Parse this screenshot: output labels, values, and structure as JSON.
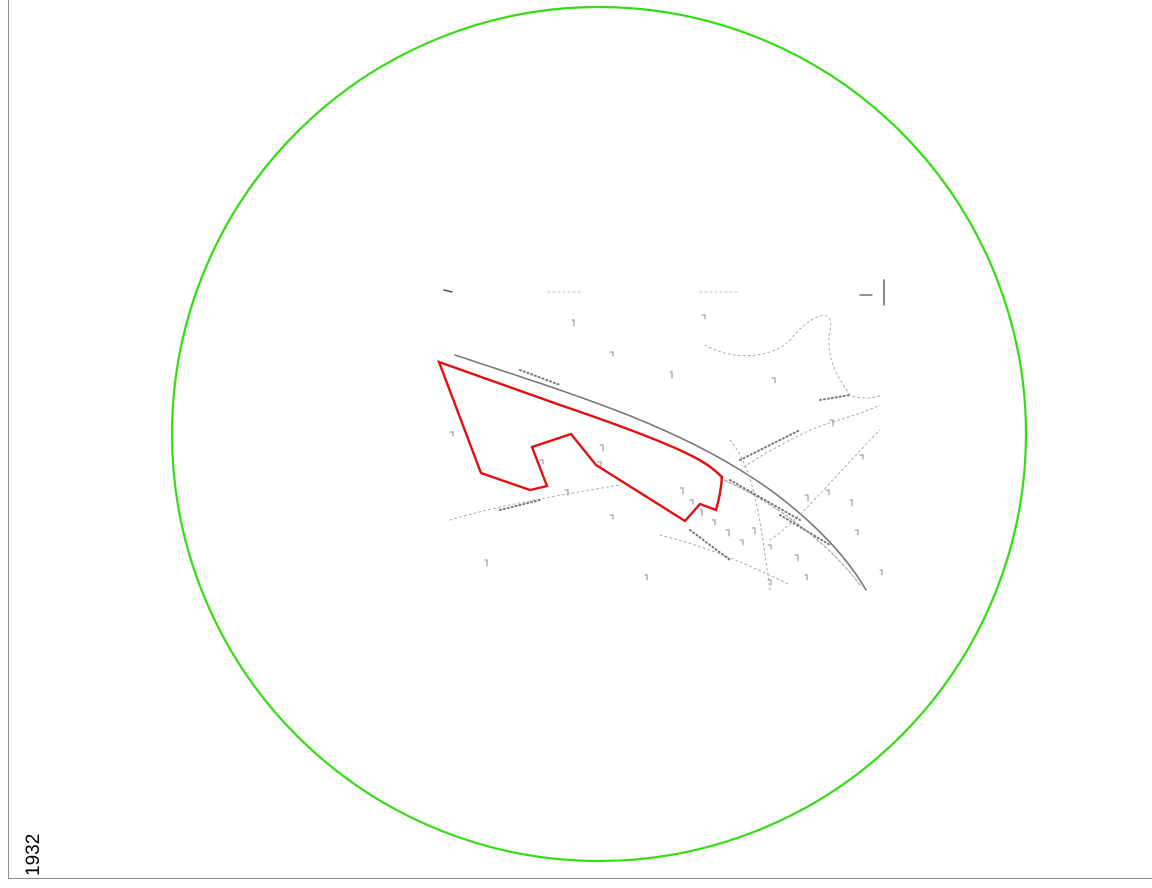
{
  "map": {
    "year_label": "1932",
    "colors": {
      "buffer_circle": "#33dd11",
      "site_boundary": "#e01010",
      "basemap_ink": "#9a9a9a",
      "frame_border": "#8c8c8c"
    }
  }
}
